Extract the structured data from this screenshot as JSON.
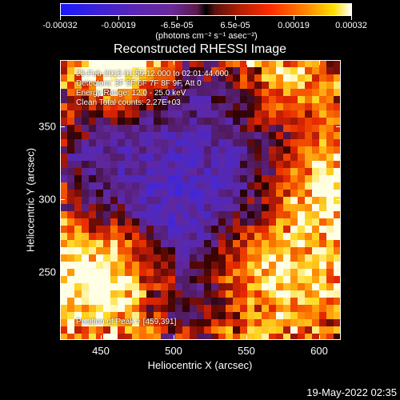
{
  "colorbar": {
    "tick_labels": [
      "-0.00032",
      "-0.00019",
      "-6.5e-05",
      "6.5e-05",
      "0.00019",
      "0.00032"
    ],
    "unit_label": "(photons cm⁻² s⁻¹ asec⁻²)"
  },
  "title": "Reconstructed RHESSI Image",
  "info": {
    "time": "23-Feb-2015 01:59:12.000 to 02:01:44.000",
    "detectors": "Detectors: 3F 5F 6F 7F 8F 9F, Att 0",
    "energy": "Energy Range: 12.0 - 25.0 keV",
    "clean": "Clean     Total counts: 2.27E+03",
    "peak": "Position of Peak = [459,391]"
  },
  "axes": {
    "xlabel": "Heliocentric X (arcsec)",
    "ylabel": "Heliocentric Y (arcsec)",
    "x_ticks": [
      "450",
      "500",
      "550",
      "600"
    ],
    "y_ticks": [
      "350",
      "300",
      "250"
    ]
  },
  "chart_data": {
    "type": "heatmap",
    "title": "Reconstructed RHESSI Image",
    "xlabel": "Heliocentric X (arcsec)",
    "ylabel": "Heliocentric Y (arcsec)",
    "xlim": [
      421,
      613
    ],
    "ylim": [
      200,
      393
    ],
    "x_ticks": [
      450,
      500,
      550,
      600
    ],
    "y_ticks": [
      250,
      300,
      350
    ],
    "colorbar_range": [
      -0.00032,
      0.00032
    ],
    "colorbar_ticks": [
      -0.00032,
      -0.00019,
      -6.5e-05,
      6.5e-05,
      0.00019,
      0.00032
    ],
    "bright_sources": [
      [
        459,
        391
      ],
      [
        450,
        240
      ],
      [
        572,
        245
      ],
      [
        603,
        307
      ],
      [
        578,
        377
      ]
    ]
  },
  "timestamp": "19-May-2022 02:35"
}
